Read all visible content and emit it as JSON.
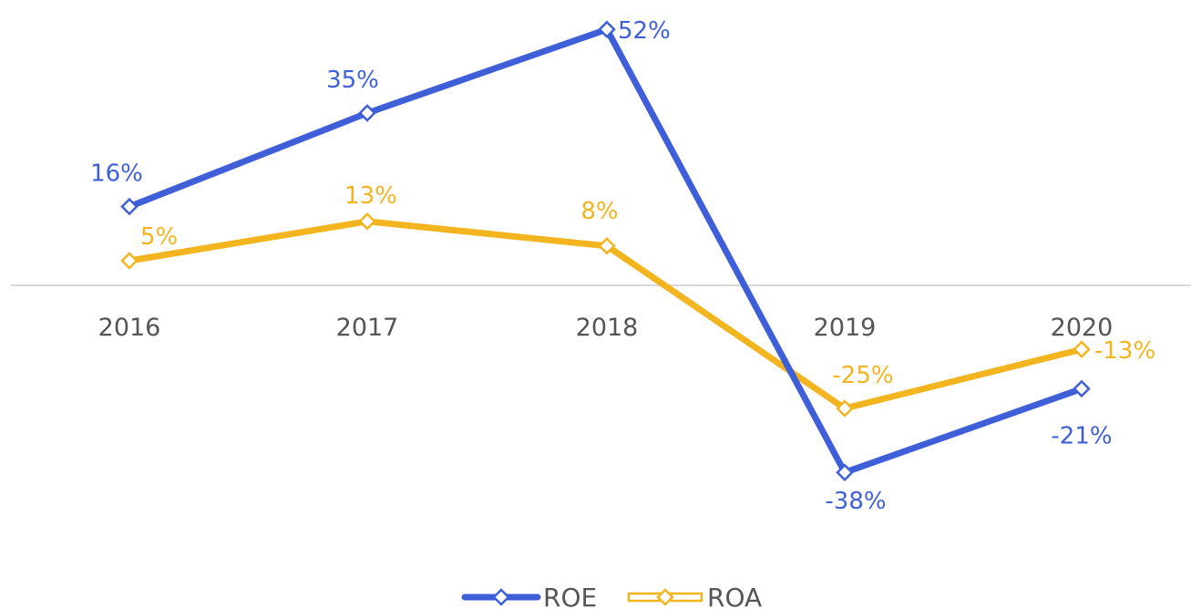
{
  "chart_data": {
    "type": "line",
    "categories": [
      "2016",
      "2017",
      "2018",
      "2019",
      "2020"
    ],
    "series": [
      {
        "name": "ROE",
        "values": [
          16,
          35,
          52,
          -38,
          -21
        ],
        "labels": [
          "16%",
          "35%",
          "52%",
          "-38%",
          "-21%"
        ],
        "color": "#3f5fd9",
        "marker": "diamond-open"
      },
      {
        "name": "ROA",
        "values": [
          5,
          13,
          8,
          -25,
          -13
        ],
        "labels": [
          "5%",
          "13%",
          "8%",
          "-25%",
          "-13%"
        ],
        "color": "#f2b51f",
        "marker": "diamond-open"
      }
    ],
    "title": "",
    "xlabel": "",
    "ylabel": "",
    "ylim": [
      -55,
      60
    ],
    "grid": false,
    "zero_line": true,
    "y_axis_visible": false,
    "legend_position": "bottom-center",
    "axis_color": "#d9d9d9",
    "tick_color": "#555555"
  }
}
